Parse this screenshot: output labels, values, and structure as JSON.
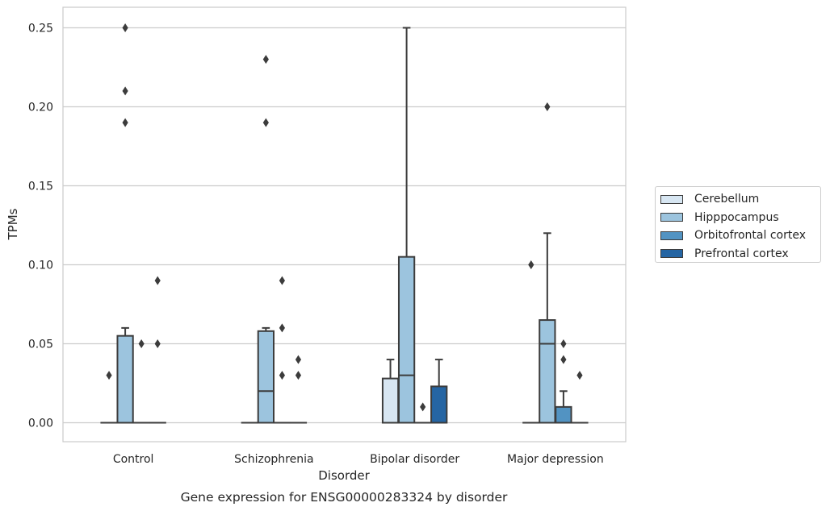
{
  "chart_data": {
    "type": "box",
    "title": "",
    "caption": "Gene expression for ENSG00000283324 by disorder",
    "xlabel": "Disorder",
    "ylabel": "TPMs",
    "ylim": [
      -0.012,
      0.263
    ],
    "yticks": [
      0.0,
      0.05,
      0.1,
      0.15,
      0.2,
      0.25
    ],
    "ytick_labels": [
      "0.00",
      "0.05",
      "0.10",
      "0.15",
      "0.20",
      "0.25"
    ],
    "grid": "horizontal",
    "legend_position": "right",
    "categories": [
      "Control",
      "Schizophrenia",
      "Bipolar disorder",
      "Major depression"
    ],
    "series": [
      {
        "name": "Cerebellum",
        "color": "#d7e6f2",
        "boxes": [
          {
            "q1": 0.0,
            "median": 0.0,
            "q3": 0.0,
            "whislo": 0.0,
            "whishi": 0.0,
            "fliers": [
              0.03
            ]
          },
          {
            "q1": 0.0,
            "median": 0.0,
            "q3": 0.0,
            "whislo": 0.0,
            "whishi": 0.0,
            "fliers": []
          },
          {
            "q1": 0.0,
            "median": 0.0,
            "q3": 0.028,
            "whislo": 0.0,
            "whishi": 0.04,
            "fliers": []
          },
          {
            "q1": 0.0,
            "median": 0.0,
            "q3": 0.0,
            "whislo": 0.0,
            "whishi": 0.0,
            "fliers": [
              0.1
            ]
          }
        ]
      },
      {
        "name": "Hipppocampus",
        "color": "#9cc4de",
        "boxes": [
          {
            "q1": 0.0,
            "median": 0.0,
            "q3": 0.055,
            "whislo": 0.0,
            "whishi": 0.06,
            "fliers": [
              0.19,
              0.21,
              0.25
            ]
          },
          {
            "q1": 0.0,
            "median": 0.02,
            "q3": 0.058,
            "whislo": 0.0,
            "whishi": 0.06,
            "fliers": [
              0.19,
              0.23
            ]
          },
          {
            "q1": 0.0,
            "median": 0.03,
            "q3": 0.105,
            "whislo": 0.0,
            "whishi": 0.25,
            "fliers": []
          },
          {
            "q1": 0.0,
            "median": 0.05,
            "q3": 0.065,
            "whislo": 0.0,
            "whishi": 0.12,
            "fliers": [
              0.2
            ]
          }
        ]
      },
      {
        "name": "Orbitofrontal cortex",
        "color": "#5293c2",
        "boxes": [
          {
            "q1": 0.0,
            "median": 0.0,
            "q3": 0.0,
            "whislo": 0.0,
            "whishi": 0.0,
            "fliers": [
              0.05
            ]
          },
          {
            "q1": 0.0,
            "median": 0.0,
            "q3": 0.0,
            "whislo": 0.0,
            "whishi": 0.0,
            "fliers": [
              0.03,
              0.06,
              0.09
            ]
          },
          {
            "q1": 0.0,
            "median": 0.0,
            "q3": 0.0,
            "whislo": 0.0,
            "whishi": 0.0,
            "fliers": [
              0.01
            ]
          },
          {
            "q1": 0.0,
            "median": 0.0,
            "q3": 0.01,
            "whislo": 0.0,
            "whishi": 0.02,
            "fliers": [
              0.04,
              0.05
            ]
          }
        ]
      },
      {
        "name": "Prefrontal cortex",
        "color": "#2565a3",
        "boxes": [
          {
            "q1": 0.0,
            "median": 0.0,
            "q3": 0.0,
            "whislo": 0.0,
            "whishi": 0.0,
            "fliers": [
              0.05,
              0.09
            ]
          },
          {
            "q1": 0.0,
            "median": 0.0,
            "q3": 0.0,
            "whislo": 0.0,
            "whishi": 0.0,
            "fliers": [
              0.03,
              0.04
            ]
          },
          {
            "q1": 0.0,
            "median": 0.0,
            "q3": 0.023,
            "whislo": 0.0,
            "whishi": 0.04,
            "fliers": []
          },
          {
            "q1": 0.0,
            "median": 0.0,
            "q3": 0.0,
            "whislo": 0.0,
            "whishi": 0.0,
            "fliers": [
              0.03
            ]
          }
        ]
      }
    ]
  }
}
